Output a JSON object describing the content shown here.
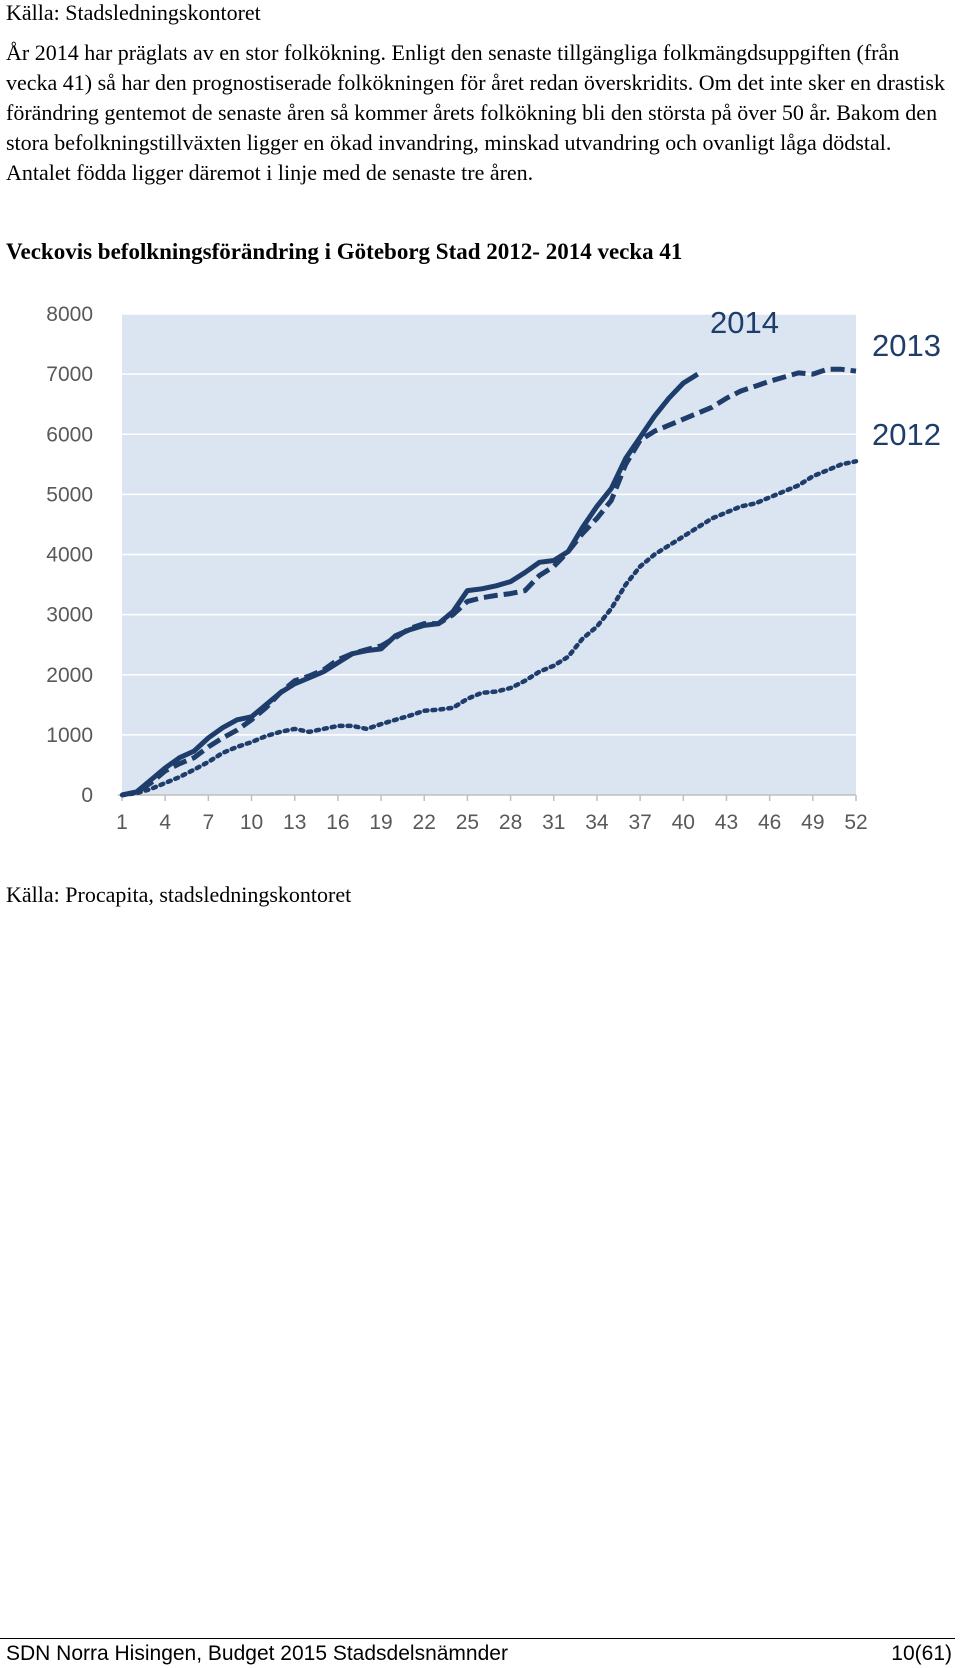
{
  "document": {
    "source_top": "Källa: Stadsledningskontoret",
    "intro": "År 2014 har präglats av en stor folkökning. Enligt den senaste tillgängliga folkmängdsuppgiften (från vecka 41) så har den prognostiserade folkökningen för året redan överskridits. Om det inte sker en drastisk förändring gentemot de senaste åren så kommer årets folkökning bli den största på över 50 år. Bakom den stora befolkningstillväxten ligger en ökad invandring, minskad utvandring och ovanligt låga dödstal. Antalet födda ligger däremot i linje med de senaste tre åren.",
    "source_bottom": "Källa: Procapita, stadsledningskontoret"
  },
  "footer": {
    "left": "SDN Norra Hisingen, Budget 2015 Stadsdelsnämnder",
    "right": "10(61)"
  },
  "colors": {
    "plot_bg": "#dbe5f1",
    "grid": "#ffffff",
    "line": "#1f3d6b",
    "axis": "#bfbfbf"
  },
  "chart_data": {
    "type": "line",
    "title": "Veckovis befolkningsförändring i Göteborg Stad 2012- 2014 vecka 41",
    "xlabel": "",
    "ylabel": "",
    "xlim": [
      1,
      52
    ],
    "ylim": [
      0,
      8000
    ],
    "x_ticks": [
      1,
      4,
      7,
      10,
      13,
      16,
      19,
      22,
      25,
      28,
      31,
      34,
      37,
      40,
      43,
      46,
      49,
      52
    ],
    "y_ticks": [
      0,
      1000,
      2000,
      3000,
      4000,
      5000,
      6000,
      7000,
      8000
    ],
    "grid": true,
    "series": [
      {
        "name": "2014",
        "style": "solid",
        "x": [
          1,
          2,
          3,
          4,
          5,
          6,
          7,
          8,
          9,
          10,
          11,
          12,
          13,
          14,
          15,
          16,
          17,
          18,
          19,
          20,
          21,
          22,
          23,
          24,
          25,
          26,
          27,
          28,
          29,
          30,
          31,
          32,
          33,
          34,
          35,
          36,
          37,
          38,
          39,
          40,
          41
        ],
        "values": [
          0,
          50,
          250,
          450,
          620,
          730,
          950,
          1120,
          1250,
          1300,
          1500,
          1700,
          1850,
          1950,
          2050,
          2200,
          2350,
          2400,
          2430,
          2650,
          2750,
          2820,
          2850,
          3050,
          3400,
          3430,
          3480,
          3550,
          3700,
          3870,
          3900,
          4050,
          4450,
          4800,
          5100,
          5600,
          5950,
          6300,
          6600,
          6850,
          7000
        ]
      },
      {
        "name": "2013",
        "style": "dashed",
        "x": [
          1,
          2,
          3,
          4,
          5,
          6,
          7,
          8,
          9,
          10,
          11,
          12,
          13,
          14,
          15,
          16,
          17,
          18,
          19,
          20,
          21,
          22,
          23,
          24,
          25,
          26,
          27,
          28,
          29,
          30,
          31,
          32,
          33,
          34,
          35,
          36,
          37,
          38,
          39,
          40,
          41,
          42,
          43,
          44,
          45,
          46,
          47,
          48,
          49,
          50,
          51,
          52
        ],
        "values": [
          0,
          50,
          200,
          400,
          520,
          620,
          800,
          950,
          1080,
          1250,
          1450,
          1700,
          1900,
          1980,
          2080,
          2250,
          2350,
          2420,
          2480,
          2620,
          2770,
          2850,
          2850,
          3000,
          3220,
          3280,
          3320,
          3350,
          3400,
          3650,
          3800,
          4050,
          4350,
          4600,
          4900,
          5500,
          5900,
          6050,
          6150,
          6250,
          6350,
          6450,
          6600,
          6720,
          6800,
          6880,
          6950,
          7020,
          7000,
          7080,
          7080,
          7050
        ]
      },
      {
        "name": "2012",
        "style": "dotted",
        "x": [
          1,
          2,
          3,
          4,
          5,
          6,
          7,
          8,
          9,
          10,
          11,
          12,
          13,
          14,
          15,
          16,
          17,
          18,
          19,
          20,
          21,
          22,
          23,
          24,
          25,
          26,
          27,
          28,
          29,
          30,
          31,
          32,
          33,
          34,
          35,
          36,
          37,
          38,
          39,
          40,
          41,
          42,
          43,
          44,
          45,
          46,
          47,
          48,
          49,
          50,
          51,
          52
        ],
        "values": [
          0,
          30,
          100,
          200,
          300,
          420,
          550,
          700,
          800,
          880,
          980,
          1050,
          1100,
          1050,
          1100,
          1150,
          1150,
          1100,
          1180,
          1250,
          1320,
          1400,
          1420,
          1450,
          1600,
          1700,
          1720,
          1780,
          1900,
          2050,
          2150,
          2300,
          2600,
          2800,
          3100,
          3500,
          3800,
          4000,
          4150,
          4300,
          4450,
          4600,
          4700,
          4800,
          4850,
          4950,
          5050,
          5150,
          5300,
          5400,
          5500,
          5550
        ]
      }
    ]
  }
}
